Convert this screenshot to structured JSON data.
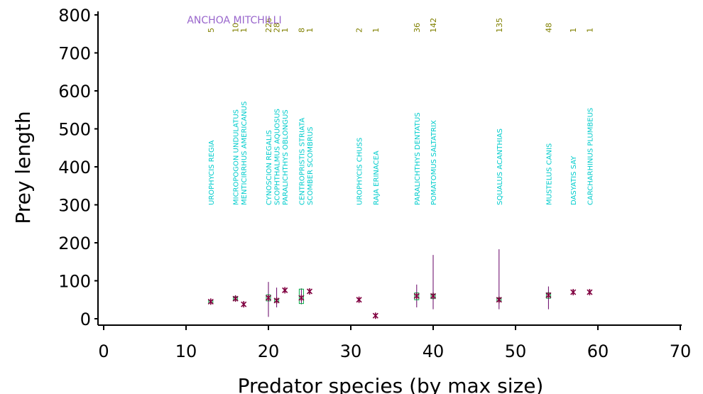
{
  "chart_data": {
    "type": "scatter",
    "title": "ANCHOA  MITCHILLI",
    "xlabel": "Predator  species  (by  max  size)",
    "ylabel": "Prey  length",
    "xlim": [
      0,
      70
    ],
    "ylim": [
      0,
      800
    ],
    "xticks": [
      "0",
      "10",
      "20",
      "30",
      "40",
      "50",
      "60",
      "70"
    ],
    "yticks": [
      "0",
      "100",
      "200",
      "300",
      "400",
      "500",
      "600",
      "700",
      "800"
    ],
    "colors": {
      "box": "#00aa44",
      "median": "#800040",
      "whisker": "#660066",
      "species_label": "#00cccc",
      "count_label": "#808000",
      "title": "#9966cc"
    },
    "groups": [
      {
        "x": 13,
        "species": "UROPHYCIS  REGIA",
        "n": "5",
        "median": 45,
        "q1": 42,
        "q3": 48,
        "min": 40,
        "max": 50
      },
      {
        "x": 16,
        "species": "MICROPOGON  UNDULATUS",
        "n": "10",
        "median": 53,
        "q1": 49,
        "q3": 58,
        "min": 47,
        "max": 62
      },
      {
        "x": 17,
        "species": "MENTICIRRHUS  AMERICANUS",
        "n": "1",
        "median": 38
      },
      {
        "x": 20,
        "species": "CYNOSCION  REGALIS",
        "n": "226",
        "median": 55,
        "q1": 47,
        "q3": 63,
        "min": 5,
        "max": 97
      },
      {
        "x": 21,
        "species": "SCOPHTHALMUS  AQUOSUS",
        "n": "28",
        "median": 48,
        "q1": 44,
        "q3": 52,
        "min": 30,
        "max": 82
      },
      {
        "x": 22,
        "species": "PARALICHTHYS  OBLONGUS",
        "n": "1",
        "median": 75
      },
      {
        "x": 24,
        "species": "CENTROPRISTIS  STRIATA",
        "n": "8",
        "median": 55,
        "q1": 40,
        "q3": 78,
        "min": 38,
        "max": 80
      },
      {
        "x": 25,
        "species": "SCOMBER  SCOMBRUS",
        "n": "1",
        "median": 72
      },
      {
        "x": 31,
        "species": "UROPHYCIS  CHUSS",
        "n": "2",
        "median": 50
      },
      {
        "x": 33,
        "species": "RAJA  ERINACEA",
        "n": "1",
        "median": 8
      },
      {
        "x": 38,
        "species": "PARALICHTHYS  DENTATUS",
        "n": "36",
        "median": 60,
        "q1": 50,
        "q3": 68,
        "min": 30,
        "max": 90
      },
      {
        "x": 40,
        "species": "POMATOMUS  SALTATRIX",
        "n": "142",
        "median": 60,
        "q1": 53,
        "q3": 65,
        "min": 25,
        "max": 168
      },
      {
        "x": 48,
        "species": "SQUALUS  ACANTHIAS",
        "n": "135",
        "median": 50,
        "q1": 46,
        "q3": 55,
        "min": 25,
        "max": 183
      },
      {
        "x": 54,
        "species": "MUSTELUS  CANIS",
        "n": "48",
        "median": 62,
        "q1": 54,
        "q3": 68,
        "min": 25,
        "max": 85
      },
      {
        "x": 57,
        "species": "DASYATIS  SAY",
        "n": "1",
        "median": 70
      },
      {
        "x": 59,
        "species": "CARCHARHINUS  PLUMBEUS",
        "n": "1",
        "median": 70
      }
    ]
  }
}
